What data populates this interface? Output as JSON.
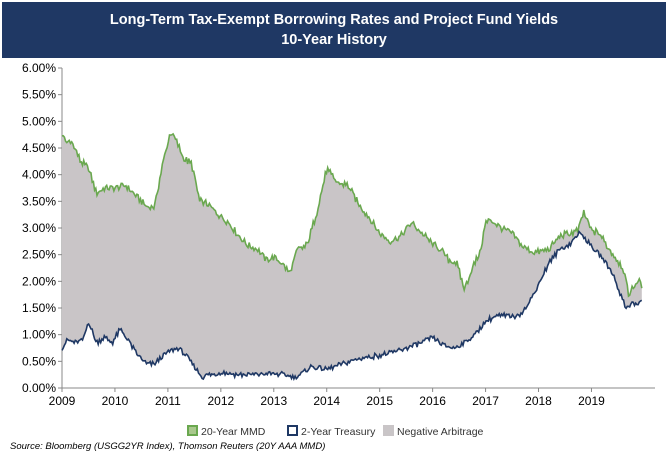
{
  "chart_data": {
    "type": "area",
    "title": "Long-Term Tax-Exempt Borrowing Rates and Project Fund Yields",
    "subtitle": "10-Year History",
    "xlabel": "",
    "ylabel": "",
    "xlim": [
      2009,
      2020.2
    ],
    "ylim": [
      0,
      0.06
    ],
    "x_ticks": [
      "2009",
      "2010",
      "2011",
      "2012",
      "2013",
      "2014",
      "2015",
      "2016",
      "2017",
      "2018",
      "2019"
    ],
    "y_ticks": [
      "0.00%",
      "0.50%",
      "1.00%",
      "1.50%",
      "2.00%",
      "2.50%",
      "3.00%",
      "3.50%",
      "4.00%",
      "4.50%",
      "5.00%",
      "5.50%",
      "6.00%"
    ],
    "series": [
      {
        "name": "20-Year MMD",
        "color": "#6aa84f",
        "x": [
          2009.0,
          2009.1,
          2009.2,
          2009.35,
          2009.5,
          2009.65,
          2009.8,
          2010.0,
          2010.2,
          2010.4,
          2010.6,
          2010.75,
          2010.9,
          2011.05,
          2011.15,
          2011.3,
          2011.45,
          2011.6,
          2011.75,
          2011.9,
          2012.0,
          2012.15,
          2012.3,
          2012.5,
          2012.7,
          2012.85,
          2013.0,
          2013.15,
          2013.3,
          2013.45,
          2013.6,
          2013.65,
          2013.8,
          2014.0,
          2014.2,
          2014.4,
          2014.6,
          2014.8,
          2015.0,
          2015.2,
          2015.4,
          2015.6,
          2015.8,
          2016.0,
          2016.15,
          2016.3,
          2016.45,
          2016.6,
          2016.75,
          2016.9,
          2017.0,
          2017.1,
          2017.3,
          2017.5,
          2017.7,
          2017.9,
          2018.0,
          2018.2,
          2018.4,
          2018.6,
          2018.75,
          2018.85,
          2019.0,
          2019.15,
          2019.3,
          2019.45,
          2019.6,
          2019.7,
          2019.8,
          2019.9,
          2019.95
        ],
        "values": [
          0.0475,
          0.046,
          0.046,
          0.0425,
          0.0412,
          0.0365,
          0.0375,
          0.0375,
          0.038,
          0.036,
          0.034,
          0.034,
          0.042,
          0.048,
          0.0465,
          0.043,
          0.042,
          0.035,
          0.0345,
          0.033,
          0.0322,
          0.031,
          0.029,
          0.0268,
          0.026,
          0.024,
          0.0245,
          0.0235,
          0.0215,
          0.026,
          0.0265,
          0.0275,
          0.0325,
          0.041,
          0.0385,
          0.038,
          0.0345,
          0.032,
          0.029,
          0.0275,
          0.0285,
          0.031,
          0.029,
          0.027,
          0.026,
          0.024,
          0.0235,
          0.0185,
          0.0225,
          0.0255,
          0.031,
          0.0315,
          0.03,
          0.029,
          0.0265,
          0.0255,
          0.0255,
          0.026,
          0.0285,
          0.029,
          0.0295,
          0.033,
          0.0295,
          0.029,
          0.0265,
          0.0245,
          0.0225,
          0.0175,
          0.019,
          0.0205,
          0.0185
        ]
      },
      {
        "name": "2-Year Treasury",
        "color": "#1f3864",
        "x": [
          2009.0,
          2009.1,
          2009.25,
          2009.4,
          2009.5,
          2009.65,
          2009.8,
          2009.95,
          2010.1,
          2010.25,
          2010.4,
          2010.5,
          2010.6,
          2010.75,
          2010.9,
          2011.05,
          2011.2,
          2011.35,
          2011.5,
          2011.65,
          2011.75,
          2011.9,
          2012.0,
          2012.3,
          2012.6,
          2012.9,
          2013.2,
          2013.4,
          2013.5,
          2013.7,
          2014.0,
          2014.3,
          2014.6,
          2014.9,
          2015.2,
          2015.5,
          2015.8,
          2016.0,
          2016.2,
          2016.4,
          2016.6,
          2016.8,
          2017.0,
          2017.2,
          2017.4,
          2017.6,
          2017.8,
          2018.0,
          2018.2,
          2018.4,
          2018.6,
          2018.75,
          2018.85,
          2019.0,
          2019.2,
          2019.4,
          2019.55,
          2019.65,
          2019.75,
          2019.85,
          2019.95
        ],
        "values": [
          0.0075,
          0.009,
          0.0085,
          0.009,
          0.0125,
          0.0085,
          0.0095,
          0.0085,
          0.011,
          0.009,
          0.0065,
          0.0055,
          0.0045,
          0.0045,
          0.006,
          0.007,
          0.0075,
          0.006,
          0.004,
          0.002,
          0.0025,
          0.0025,
          0.003,
          0.0025,
          0.0025,
          0.0027,
          0.0025,
          0.002,
          0.0025,
          0.004,
          0.0035,
          0.0045,
          0.0055,
          0.006,
          0.0065,
          0.0075,
          0.0085,
          0.0095,
          0.008,
          0.0075,
          0.0085,
          0.01,
          0.0125,
          0.0135,
          0.0135,
          0.0135,
          0.0155,
          0.0195,
          0.0235,
          0.026,
          0.027,
          0.029,
          0.0285,
          0.0265,
          0.0245,
          0.0215,
          0.0175,
          0.015,
          0.016,
          0.0155,
          0.0165
        ]
      }
    ],
    "legend": [
      {
        "label": "20-Year MMD",
        "color": "#6aa84f",
        "fill": "#a9c88d"
      },
      {
        "label": "2-Year Treasury",
        "color": "#1f3864",
        "fill": "#ffffff"
      },
      {
        "label": "Negative Arbitrage",
        "color": "#c9c5c7",
        "fill": "#c9c5c7"
      }
    ],
    "legend_position": "bottom-center",
    "fill_between": {
      "name": "Negative Arbitrage",
      "color": "#c9c5c7"
    },
    "grid": false,
    "source": "Source: Bloomberg (USGG2YR Index), Thomson Reuters (20Y AAA MMD)"
  }
}
